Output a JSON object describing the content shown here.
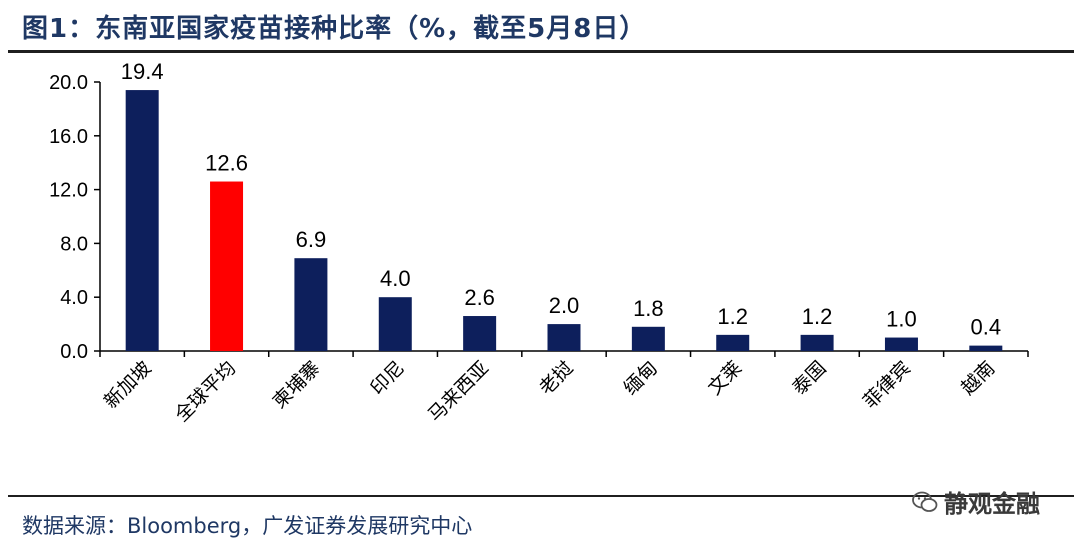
{
  "title": "图1：东南亚国家疫苗接种比率（%，截至5月8日）",
  "source": "数据来源：Bloomberg，广发证券发展研究中心",
  "watermark": "静观金融",
  "colors": {
    "series": "#0d1f5c",
    "highlight": "#ff0000",
    "title": "#1f3864"
  },
  "chart_data": {
    "type": "bar",
    "categories": [
      "新加坡",
      "全球平均",
      "柬埔寨",
      "印尼",
      "马来西亚",
      "老挝",
      "缅甸",
      "文莱",
      "泰国",
      "菲律宾",
      "越南"
    ],
    "values": [
      19.4,
      12.6,
      6.9,
      4.0,
      2.6,
      2.0,
      1.8,
      1.2,
      1.2,
      1.0,
      0.4
    ],
    "data_labels": [
      "19.4",
      "12.6",
      "6.9",
      "4.0",
      "2.6",
      "2.0",
      "1.8",
      "1.2",
      "1.2",
      "1.0",
      "0.4"
    ],
    "highlight_category": "全球平均",
    "ylim": [
      0,
      20
    ],
    "yticks": [
      "0.0",
      "4.0",
      "8.0",
      "12.0",
      "16.0",
      "20.0"
    ],
    "grid": false,
    "title": "",
    "xlabel": "",
    "ylabel": ""
  }
}
